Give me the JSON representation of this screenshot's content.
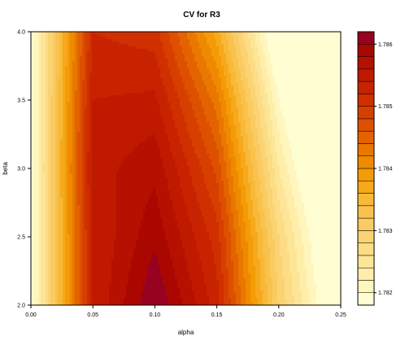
{
  "chart_data": {
    "type": "heatmap",
    "subtype": "filled-contour",
    "title": "CV for R3",
    "xlabel": "alpha",
    "ylabel": "beta",
    "xlim": [
      0.0,
      0.25
    ],
    "ylim": [
      2.0,
      4.0
    ],
    "x_ticks": [
      "0.00",
      "0.05",
      "0.10",
      "0.15",
      "0.20",
      "0.25"
    ],
    "x_tick_values": [
      0.0,
      0.05,
      0.1,
      0.15,
      0.2,
      0.25
    ],
    "y_ticks": [
      "2.0",
      "2.5",
      "3.0",
      "3.5",
      "4.0"
    ],
    "y_tick_values": [
      2.0,
      2.5,
      3.0,
      3.5,
      4.0
    ],
    "grid_x": [
      0.0,
      0.05,
      0.1,
      0.15,
      0.2,
      0.25
    ],
    "grid_y": [
      2.0,
      2.5,
      3.0,
      3.5,
      4.0
    ],
    "z_grid": [
      [
        1.7818,
        1.7854,
        1.7862,
        1.7853,
        1.783,
        1.7814
      ],
      [
        1.7818,
        1.7854,
        1.78595,
        1.7851,
        1.7828,
        1.7812
      ],
      [
        1.7818,
        1.7855,
        1.78575,
        1.78475,
        1.7824,
        1.7809
      ],
      [
        1.7818,
        1.7854,
        1.78545,
        1.7843,
        1.782,
        1.7806
      ],
      [
        1.7818,
        1.7852,
        1.7851,
        1.7837,
        1.7815,
        1.7802
      ]
    ],
    "colorbar": {
      "levels": [
        1.7818,
        1.782,
        1.7822,
        1.7824,
        1.7826,
        1.7828,
        1.783,
        1.7832,
        1.7834,
        1.7836,
        1.7838,
        1.784,
        1.7842,
        1.7844,
        1.7846,
        1.7848,
        1.785,
        1.7852,
        1.7854,
        1.7856,
        1.7858,
        1.786,
        1.7862
      ],
      "colors": [
        "#fffdd2",
        "#fff6bd",
        "#feeeaa",
        "#fde597",
        "#fcdc85",
        "#fbd373",
        "#facb62",
        "#f9c24d",
        "#f8b939",
        "#f7a91c",
        "#f49b06",
        "#ef8a00",
        "#e97700",
        "#e36300",
        "#dd5000",
        "#d73f00",
        "#d02f00",
        "#c82300",
        "#bf1900",
        "#b51000",
        "#aa0700",
        "#960220"
      ],
      "tick_labels": [
        "1.782",
        "1.783",
        "1.784",
        "1.785",
        "1.786"
      ],
      "tick_values": [
        1.782,
        1.783,
        1.784,
        1.785,
        1.786
      ]
    }
  }
}
